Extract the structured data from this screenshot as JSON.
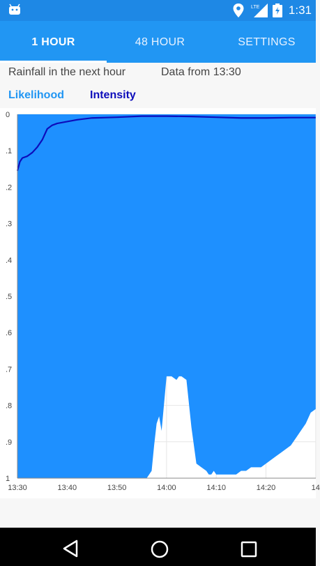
{
  "status_bar": {
    "time": "1:31",
    "network_label": "LTE",
    "icons": [
      "android-icon",
      "location-icon",
      "signal-icon",
      "battery-icon"
    ]
  },
  "tabs": [
    {
      "label": "1 HOUR",
      "active": true
    },
    {
      "label": "48 HOUR",
      "active": false
    },
    {
      "label": "SETTINGS",
      "active": false
    }
  ],
  "info": {
    "title": "Rainfall in the next hour",
    "data_from": "Data from 13:30"
  },
  "legend": {
    "likelihood_label": "Likelihood",
    "intensity_label": "Intensity"
  },
  "colors": {
    "primary": "#2196f3",
    "likelihood": "#1e90ff",
    "intensity": "#0d0dbb"
  },
  "chart_data": {
    "type": "area",
    "x_ticks": [
      "13:30",
      "13:40",
      "13:50",
      "14:00",
      "14:10",
      "14:20",
      "14"
    ],
    "y_ticks": [
      "0",
      ".1",
      ".2",
      ".3",
      ".4",
      ".5",
      ".6",
      ".7",
      ".8",
      ".9",
      "1"
    ],
    "ylim": [
      0,
      1
    ],
    "y_inverted": true,
    "grid": true,
    "likelihood": {
      "x_minutes": [
        0,
        26,
        27,
        27.5,
        28,
        28.5,
        29,
        30,
        31,
        32,
        32.5,
        33,
        34,
        35,
        36,
        37,
        38,
        38.5,
        39,
        39.5,
        40,
        41,
        42,
        43,
        44,
        45,
        46,
        47,
        48,
        49,
        50,
        51,
        52,
        53,
        54,
        55,
        56,
        57,
        58,
        59,
        60
      ],
      "values": [
        1.0,
        1.0,
        0.98,
        0.91,
        0.85,
        0.83,
        0.87,
        0.72,
        0.72,
        0.73,
        0.72,
        0.72,
        0.73,
        0.86,
        0.96,
        0.97,
        0.98,
        0.99,
        0.99,
        0.98,
        0.99,
        0.99,
        0.99,
        0.99,
        0.99,
        0.98,
        0.98,
        0.97,
        0.97,
        0.97,
        0.96,
        0.95,
        0.94,
        0.93,
        0.92,
        0.91,
        0.89,
        0.87,
        0.85,
        0.82,
        0.81
      ]
    },
    "intensity": {
      "x_minutes": [
        0,
        0.5,
        1,
        2,
        3,
        4,
        5,
        6,
        7,
        8,
        10,
        12,
        15,
        20,
        25,
        30,
        35,
        40,
        45,
        50,
        55,
        60
      ],
      "values": [
        0.155,
        0.13,
        0.12,
        0.115,
        0.105,
        0.09,
        0.07,
        0.04,
        0.03,
        0.025,
        0.02,
        0.015,
        0.01,
        0.008,
        0.005,
        0.005,
        0.006,
        0.008,
        0.01,
        0.01,
        0.009,
        0.009
      ]
    }
  },
  "nav": {
    "back": "back-icon",
    "home": "home-icon",
    "recents": "recents-icon"
  }
}
